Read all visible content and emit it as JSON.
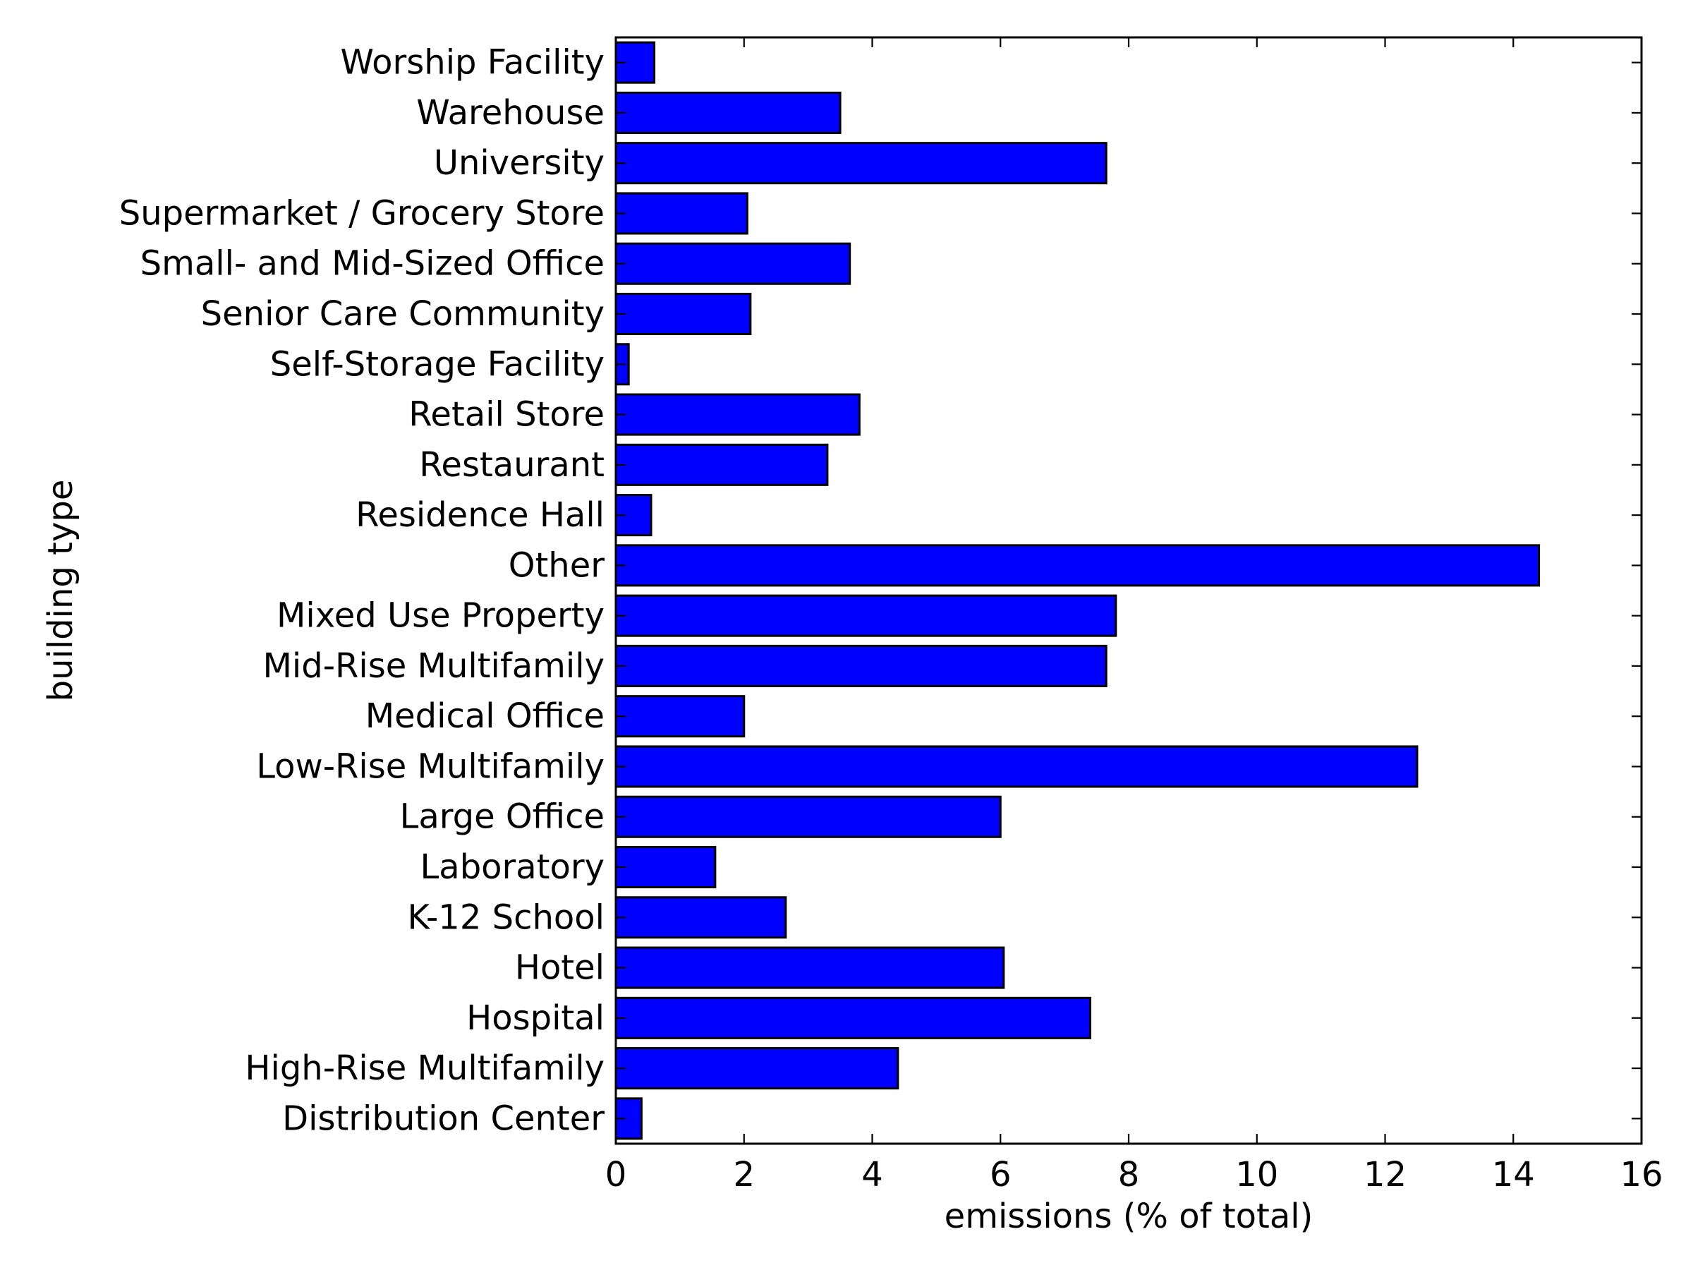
{
  "chart_data": {
    "type": "bar",
    "orientation": "horizontal",
    "categories": [
      "Distribution Center",
      "High-Rise Multifamily",
      "Hospital",
      "Hotel",
      "K-12 School",
      "Laboratory",
      "Large Office",
      "Low-Rise Multifamily",
      "Medical Office",
      "Mid-Rise Multifamily",
      "Mixed Use Property",
      "Other",
      "Residence Hall",
      "Restaurant",
      "Retail Store",
      "Self-Storage Facility",
      "Senior Care Community",
      "Small- and Mid-Sized Office",
      "Supermarket / Grocery Store",
      "University",
      "Warehouse",
      "Worship Facility"
    ],
    "values": [
      0.4,
      4.4,
      7.4,
      6.05,
      2.65,
      1.55,
      6.0,
      12.5,
      2.0,
      7.65,
      7.8,
      14.4,
      0.55,
      3.3,
      3.8,
      0.2,
      2.1,
      3.65,
      2.05,
      7.65,
      3.5,
      0.6
    ],
    "xlabel": "emissions (% of total)",
    "ylabel": "building type",
    "xlim": [
      0,
      16
    ],
    "xticks": [
      0,
      2,
      4,
      6,
      8,
      10,
      12,
      14,
      16
    ],
    "grid": false,
    "colors": {
      "bar": "#0000ff",
      "edge": "#000000"
    }
  }
}
